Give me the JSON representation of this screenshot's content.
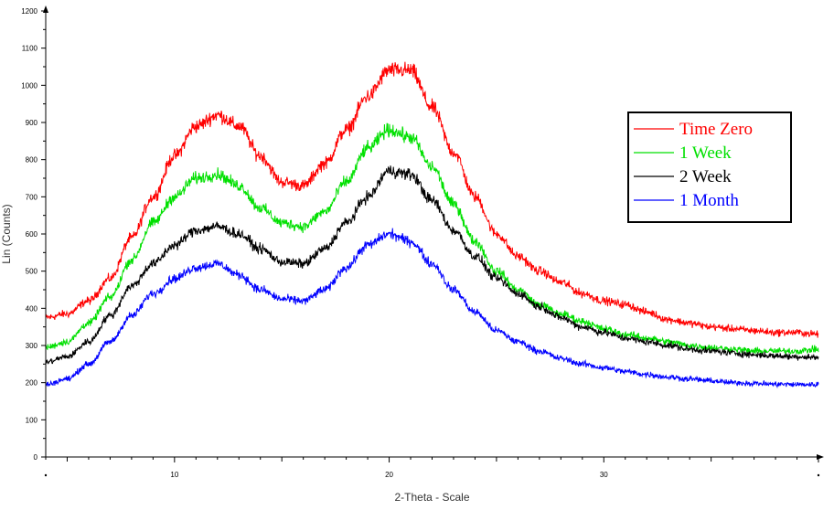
{
  "chart_data": {
    "type": "line",
    "title": "",
    "xlabel": "2-Theta - Scale",
    "ylabel": "Lin (Counts)",
    "xlim": [
      4,
      40
    ],
    "ylim": [
      0,
      1200
    ],
    "x_ticks": [
      "10",
      "20",
      "30"
    ],
    "x_tick_values": [
      10,
      20,
      30
    ],
    "y_ticks": [
      "0",
      "100",
      "200",
      "300",
      "400",
      "500",
      "600",
      "700",
      "800",
      "900",
      "1000",
      "1100",
      "1200"
    ],
    "grid": false,
    "legend_position": "right",
    "series": [
      {
        "name": "Time Zero",
        "color": "#ff0000",
        "x": [
          4,
          5,
          6,
          7,
          8,
          9,
          10,
          11,
          12,
          13,
          14,
          15,
          16,
          17,
          18,
          19,
          20,
          21,
          22,
          23,
          24,
          25,
          26,
          27,
          28,
          29,
          30,
          31,
          32,
          33,
          34,
          35,
          36,
          37,
          38,
          39,
          40
        ],
        "y": [
          375,
          385,
          420,
          480,
          590,
          700,
          810,
          890,
          920,
          890,
          810,
          740,
          730,
          790,
          880,
          970,
          1040,
          1040,
          940,
          820,
          700,
          600,
          540,
          500,
          470,
          440,
          420,
          410,
          390,
          370,
          360,
          350,
          345,
          340,
          335,
          335,
          330
        ]
      },
      {
        "name": "1 Week",
        "color": "#00e000",
        "x": [
          4,
          5,
          6,
          7,
          8,
          9,
          10,
          11,
          12,
          13,
          14,
          15,
          16,
          17,
          18,
          19,
          20,
          21,
          22,
          23,
          24,
          25,
          26,
          27,
          28,
          29,
          30,
          31,
          32,
          33,
          34,
          35,
          36,
          37,
          38,
          39,
          40
        ],
        "y": [
          295,
          310,
          360,
          430,
          530,
          630,
          700,
          750,
          760,
          730,
          670,
          630,
          620,
          660,
          740,
          830,
          880,
          860,
          780,
          680,
          580,
          500,
          450,
          410,
          385,
          365,
          345,
          330,
          320,
          310,
          300,
          295,
          290,
          285,
          285,
          285,
          290
        ]
      },
      {
        "name": "2 Week",
        "color": "#000000",
        "x": [
          4,
          5,
          6,
          7,
          8,
          9,
          10,
          11,
          12,
          13,
          14,
          15,
          16,
          17,
          18,
          19,
          20,
          21,
          22,
          23,
          24,
          25,
          26,
          27,
          28,
          29,
          30,
          31,
          32,
          33,
          34,
          35,
          36,
          37,
          38,
          39,
          40
        ],
        "y": [
          255,
          270,
          310,
          380,
          460,
          520,
          570,
          610,
          620,
          600,
          560,
          525,
          520,
          560,
          630,
          700,
          770,
          760,
          690,
          610,
          540,
          480,
          440,
          405,
          375,
          350,
          335,
          320,
          310,
          300,
          290,
          285,
          280,
          275,
          272,
          270,
          268
        ]
      },
      {
        "name": "1 Month",
        "color": "#0000ff",
        "x": [
          4,
          5,
          6,
          7,
          8,
          9,
          10,
          11,
          12,
          13,
          14,
          15,
          16,
          17,
          18,
          19,
          20,
          21,
          22,
          23,
          24,
          25,
          26,
          27,
          28,
          29,
          30,
          31,
          32,
          33,
          34,
          35,
          36,
          37,
          38,
          39,
          40
        ],
        "y": [
          195,
          210,
          250,
          310,
          380,
          440,
          480,
          510,
          520,
          490,
          450,
          425,
          420,
          450,
          510,
          570,
          600,
          580,
          520,
          450,
          390,
          340,
          310,
          285,
          265,
          250,
          240,
          230,
          222,
          215,
          210,
          205,
          200,
          198,
          196,
          195,
          195
        ]
      }
    ]
  }
}
